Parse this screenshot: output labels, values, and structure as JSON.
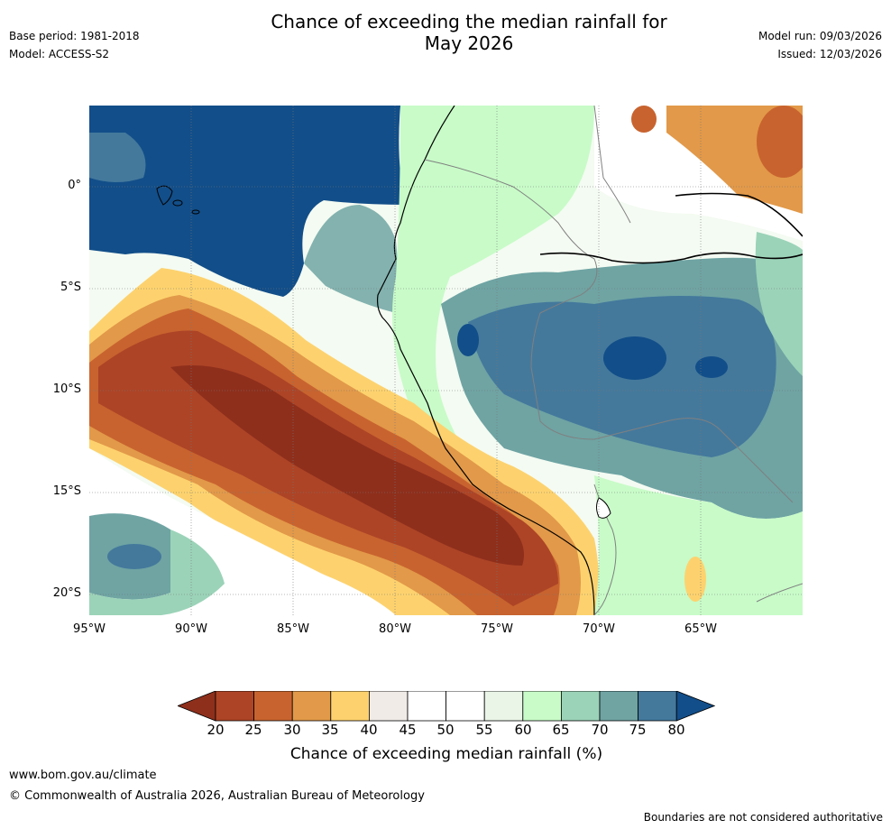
{
  "header": {
    "title_line1": "Chance of exceeding the median rainfall for",
    "title_line2": "May 2026",
    "base_period": "Base period: 1981-2018",
    "model": "Model: ACCESS-S2",
    "model_run": "Model run: 09/03/2026",
    "issued": "Issued: 12/03/2026"
  },
  "map": {
    "latitude_labels": [
      "0°",
      "5°S",
      "10°S",
      "15°S",
      "20°S"
    ],
    "longitude_labels": [
      "95°W",
      "90°W",
      "85°W",
      "80°W",
      "75°W",
      "70°W",
      "65°W"
    ]
  },
  "colorbar": {
    "ticks": [
      "20",
      "25",
      "30",
      "35",
      "40",
      "45",
      "50",
      "55",
      "60",
      "65",
      "70",
      "75",
      "80"
    ],
    "colors": [
      "#8e2f1c",
      "#ad4426",
      "#c8632f",
      "#e29949",
      "#fdd26e",
      "#f0ebe6",
      "#ffffff",
      "#ffffff",
      "#eaf5e8",
      "#c8fbc8",
      "#9bd3b8",
      "#6fa4a3",
      "#44799c",
      "#124e89"
    ],
    "label": "Chance of exceeding median rainfall (%)"
  },
  "footer": {
    "url": "www.bom.gov.au/climate",
    "copyright": "© Commonwealth of Australia 2026, Australian Bureau of Meteorology",
    "disclaimer": "Boundaries are not considered authoritative"
  }
}
